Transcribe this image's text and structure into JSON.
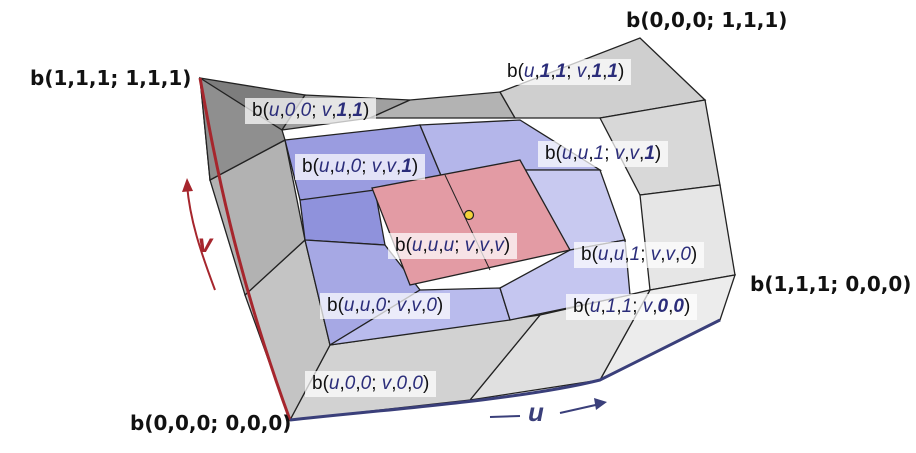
{
  "corners": {
    "top_right": "b(0,0,0; 1,1,1)",
    "top_left": "b(1,1,1; 1,1,1)",
    "right": "b(1,1,1; 0,0,0)",
    "bottom_left": "b(0,0,0; 0,0,0)"
  },
  "axes": {
    "u": "u",
    "v": "v"
  },
  "labels": [
    {
      "id": "u11-v11",
      "parts": [
        [
          "b(",
          ""
        ],
        [
          "u",
          "u"
        ],
        [
          ",",
          ""
        ],
        [
          "1",
          "b"
        ],
        [
          ",",
          ""
        ],
        [
          "1",
          "b"
        ],
        [
          "; ",
          ""
        ],
        [
          "v",
          "u"
        ],
        [
          ",",
          ""
        ],
        [
          "1",
          "b"
        ],
        [
          ",",
          ""
        ],
        [
          "1",
          "b"
        ],
        [
          ")",
          ""
        ]
      ]
    },
    {
      "id": "u00-v11",
      "parts": [
        [
          "b(",
          ""
        ],
        [
          "u",
          "u"
        ],
        [
          ",",
          ""
        ],
        [
          "0",
          "u"
        ],
        [
          ",",
          ""
        ],
        [
          "0",
          "u"
        ],
        [
          "; ",
          ""
        ],
        [
          "v",
          "u"
        ],
        [
          ",",
          ""
        ],
        [
          "1",
          "b"
        ],
        [
          ",",
          ""
        ],
        [
          "1",
          "b"
        ],
        [
          ")",
          ""
        ]
      ]
    },
    {
      "id": "uu0-vv1",
      "parts": [
        [
          "b(",
          ""
        ],
        [
          "u",
          "u"
        ],
        [
          ",",
          ""
        ],
        [
          "u",
          "u"
        ],
        [
          ",",
          ""
        ],
        [
          "0",
          "u"
        ],
        [
          "; ",
          ""
        ],
        [
          "v",
          "u"
        ],
        [
          ",",
          ""
        ],
        [
          "v",
          "u"
        ],
        [
          ",",
          ""
        ],
        [
          "1",
          "b"
        ],
        [
          ")",
          ""
        ]
      ]
    },
    {
      "id": "uu1-vv1",
      "parts": [
        [
          "b(",
          ""
        ],
        [
          "u",
          "u"
        ],
        [
          ",",
          ""
        ],
        [
          "u",
          "u"
        ],
        [
          ",",
          ""
        ],
        [
          "1",
          "u"
        ],
        [
          "; ",
          ""
        ],
        [
          "v",
          "u"
        ],
        [
          ",",
          ""
        ],
        [
          "v",
          "u"
        ],
        [
          ",",
          ""
        ],
        [
          "1",
          "b"
        ],
        [
          ")",
          ""
        ]
      ]
    },
    {
      "id": "uuu-vvv",
      "parts": [
        [
          "b(",
          ""
        ],
        [
          "u",
          "u"
        ],
        [
          ",",
          ""
        ],
        [
          "u",
          "u"
        ],
        [
          ",",
          ""
        ],
        [
          "u",
          "u"
        ],
        [
          "; ",
          ""
        ],
        [
          "v",
          "u"
        ],
        [
          ",",
          ""
        ],
        [
          "v",
          "u"
        ],
        [
          ",",
          ""
        ],
        [
          "v",
          "u"
        ],
        [
          ")",
          ""
        ]
      ]
    },
    {
      "id": "uu1-vv0",
      "parts": [
        [
          "b(",
          ""
        ],
        [
          "u",
          "u"
        ],
        [
          ",",
          ""
        ],
        [
          "u",
          "u"
        ],
        [
          ",",
          ""
        ],
        [
          "1",
          "u"
        ],
        [
          "; ",
          ""
        ],
        [
          "v",
          "u"
        ],
        [
          ",",
          ""
        ],
        [
          "v",
          "u"
        ],
        [
          ",",
          ""
        ],
        [
          "0",
          "u"
        ],
        [
          ")",
          ""
        ]
      ]
    },
    {
      "id": "uu0-vv0",
      "parts": [
        [
          "b(",
          ""
        ],
        [
          "u",
          "u"
        ],
        [
          ",",
          ""
        ],
        [
          "u",
          "u"
        ],
        [
          ",",
          ""
        ],
        [
          "0",
          "u"
        ],
        [
          "; ",
          ""
        ],
        [
          "v",
          "u"
        ],
        [
          ",",
          ""
        ],
        [
          "v",
          "u"
        ],
        [
          ",",
          ""
        ],
        [
          "0",
          "u"
        ],
        [
          ")",
          ""
        ]
      ]
    },
    {
      "id": "u11-v00",
      "parts": [
        [
          "b(",
          ""
        ],
        [
          "u",
          "u"
        ],
        [
          ",",
          ""
        ],
        [
          "1",
          "u"
        ],
        [
          ",",
          ""
        ],
        [
          "1",
          "u"
        ],
        [
          "; ",
          ""
        ],
        [
          "v",
          "u"
        ],
        [
          ",",
          ""
        ],
        [
          "0",
          "b"
        ],
        [
          ",",
          ""
        ],
        [
          "0",
          "b"
        ],
        [
          ")",
          ""
        ]
      ]
    },
    {
      "id": "u00-v00",
      "parts": [
        [
          "b(",
          ""
        ],
        [
          "u",
          "u"
        ],
        [
          ",",
          ""
        ],
        [
          "0",
          "u"
        ],
        [
          ",",
          ""
        ],
        [
          "0",
          "u"
        ],
        [
          "; ",
          ""
        ],
        [
          "v",
          "u"
        ],
        [
          ",",
          ""
        ],
        [
          "0",
          "u"
        ],
        [
          ",",
          ""
        ],
        [
          "0",
          "u"
        ],
        [
          ")",
          ""
        ]
      ]
    }
  ],
  "colors": {
    "outer_light": "#e4e4e4",
    "outer_mid": "#bdbdbd",
    "outer_dark": "#8a8a8a",
    "blue": "#a9abe6",
    "blue_dark": "#8c8fd8",
    "pink": "#e6a0a8",
    "edge_red": "#a6262d",
    "edge_blue": "#3a3f7a",
    "point": "#f3d23a"
  }
}
